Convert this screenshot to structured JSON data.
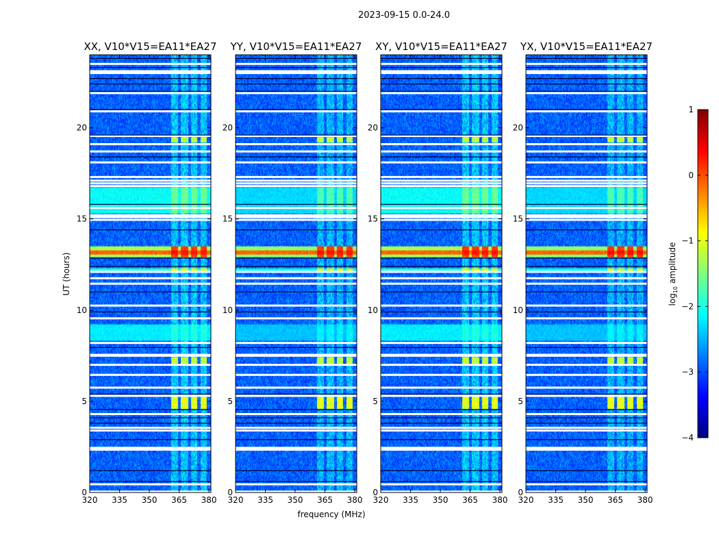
{
  "chart_data": {
    "type": "heatmap",
    "title": "2023-09-15 0.0-24.0",
    "xlabel": "frequency (MHz)",
    "ylabel": "UT (hours)",
    "xlim": [
      320,
      381
    ],
    "ylim": [
      0,
      24
    ],
    "xticks": [
      320,
      335,
      350,
      365,
      380
    ],
    "yticks": [
      0,
      5,
      10,
      15,
      20
    ],
    "colorbar": {
      "label_prefix": "log",
      "label_sub": "10",
      "label_suffix": " amplitude",
      "range": [
        -4,
        1
      ],
      "ticks": [
        1,
        0,
        -1,
        -2,
        -3,
        -4
      ],
      "tick_labels": [
        "1",
        "0",
        "−1",
        "−2",
        "−3",
        "−4"
      ],
      "colormap": "jet",
      "stops": [
        "#00007f",
        "#0000ff",
        "#007fff",
        "#00ffff",
        "#7fff7f",
        "#ffff00",
        "#ff7f00",
        "#ff0000",
        "#7f0000"
      ]
    },
    "panels": [
      {
        "title": "XX, V10*V15=EA11*EA27",
        "rfi_scale": 1.0
      },
      {
        "title": "YY, V10*V15=EA11*EA27",
        "rfi_scale": 0.85
      },
      {
        "title": "XY, V10*V15=EA11*EA27",
        "rfi_scale": 1.0
      },
      {
        "title": "YX, V10*V15=EA11*EA27",
        "rfi_scale": 0.8
      }
    ],
    "background_level": -2.9,
    "rfi_channels_mhz": [
      [
        361,
        364.5
      ],
      [
        366,
        369.5
      ],
      [
        371,
        374
      ],
      [
        376,
        379
      ]
    ],
    "flagged_hours": [
      0.05,
      0.45,
      2.35,
      2.4,
      2.45,
      3.4,
      3.55,
      4.3,
      5.3,
      5.75,
      6.45,
      7.0,
      7.5,
      7.55,
      8.2,
      9.55,
      10.25,
      11.45,
      11.75,
      12.1,
      14.95,
      15.1,
      15.2,
      15.6,
      16.8,
      16.95,
      17.1,
      17.3,
      18.1,
      18.7,
      19.1,
      19.55,
      20.9,
      21.9,
      23.0,
      23.1,
      23.5
    ],
    "dark_rows_hours": [
      0.6,
      1.2,
      2.9,
      3.8,
      4.1,
      4.55,
      5.4,
      7.95,
      9.9,
      11.0,
      12.4,
      12.85,
      14.4,
      15.8,
      18.4,
      19.6,
      21.0,
      22.0,
      22.4,
      22.7,
      23.3,
      23.8
    ],
    "features": [
      {
        "hours": [
          12.9,
          13.5
        ],
        "freq_mhz": "all",
        "level": -1.3,
        "rfi_level": 0.1
      },
      {
        "hours": [
          13.05,
          13.3
        ],
        "freq_mhz": "all",
        "level": -0.1,
        "rfi_level": 0.3
      },
      {
        "hours": [
          12.1,
          12.3
        ],
        "freq_mhz": "all",
        "level": -1.9,
        "rfi_level": -1.0
      },
      {
        "hours": [
          15.3,
          16.7
        ],
        "freq_mhz": "all",
        "level": -2.1,
        "rfi_level": -1.6
      },
      {
        "hours": [
          7.0,
          7.4
        ],
        "freq_mhz": "rfi",
        "level": -1.2
      },
      {
        "hours": [
          4.6,
          5.25
        ],
        "freq_mhz": "rfi",
        "level": -1.0
      },
      {
        "hours": [
          19.2,
          19.5
        ],
        "freq_mhz": "rfi",
        "level": -1.2
      },
      {
        "hours": [
          8.3,
          9.2
        ],
        "freq_mhz": "all",
        "level": -2.2,
        "rfi_level": -2.0
      }
    ]
  }
}
